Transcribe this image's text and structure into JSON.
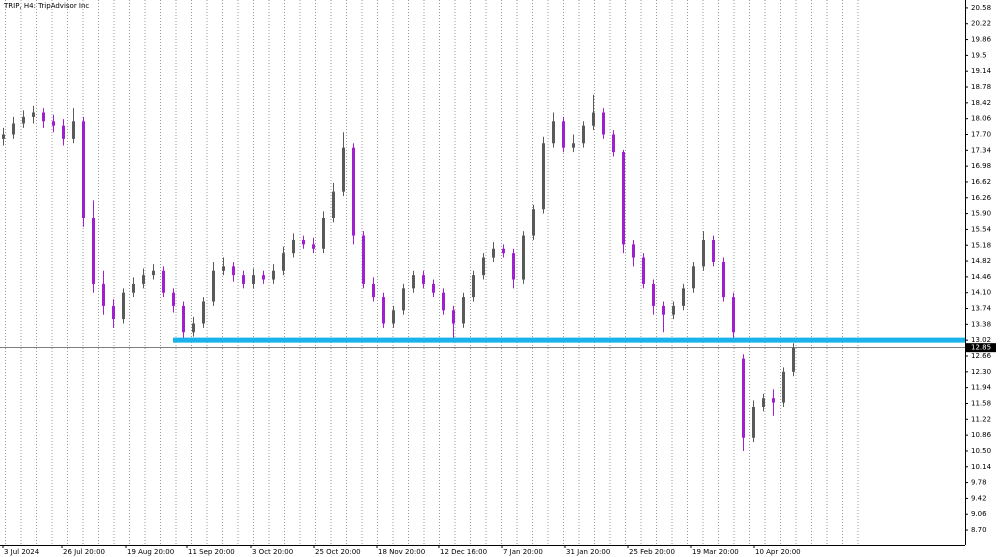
{
  "chart_data": {
    "type": "candlestick",
    "title": "TRIP, H4:  TripAdvisor Inc",
    "up_color": "#5a5a5a",
    "down_color": "#a020d0",
    "open": [
      17.6,
      17.7,
      17.95,
      18.1,
      18.2,
      18.0,
      17.9,
      17.6,
      18.0,
      15.8,
      14.3,
      13.8,
      13.5,
      14.1,
      14.3,
      14.5,
      14.6,
      14.1,
      13.8,
      13.2,
      13.4,
      13.9,
      14.6,
      14.7,
      14.5,
      14.3,
      14.5,
      14.4,
      14.6,
      15.0,
      15.3,
      15.2,
      15.1,
      15.8,
      16.4,
      17.4,
      15.4,
      14.3,
      14.0,
      13.4,
      13.7,
      14.2,
      14.5,
      14.3,
      14.1,
      13.7,
      13.4,
      14.0,
      14.5,
      14.9,
      15.1,
      15.0,
      14.4,
      15.4,
      16.0,
      17.5,
      18.0,
      17.4,
      17.5,
      17.9,
      18.2,
      17.7,
      17.3,
      15.2,
      14.9,
      14.3,
      13.8,
      13.6,
      13.8,
      14.2,
      14.7,
      15.3,
      14.8,
      14.0,
      12.6,
      10.8,
      11.5,
      11.7,
      11.6,
      12.3
    ],
    "high": [
      17.85,
      18.1,
      18.25,
      18.35,
      18.3,
      18.15,
      18.05,
      18.3,
      18.1,
      16.2,
      14.6,
      13.95,
      14.2,
      14.45,
      14.65,
      14.75,
      14.7,
      14.2,
      13.9,
      13.55,
      14.0,
      14.8,
      14.9,
      14.8,
      14.6,
      14.65,
      14.6,
      14.75,
      15.15,
      15.45,
      15.4,
      15.35,
      15.95,
      16.6,
      17.75,
      17.5,
      15.5,
      14.45,
      14.1,
      13.8,
      14.3,
      14.6,
      14.6,
      14.4,
      14.2,
      13.8,
      14.1,
      14.6,
      15.0,
      15.25,
      15.2,
      15.1,
      15.5,
      16.1,
      17.65,
      18.2,
      18.1,
      17.7,
      18.0,
      18.6,
      18.3,
      17.8,
      17.35,
      15.3,
      15.0,
      14.4,
      13.9,
      13.9,
      14.3,
      14.8,
      15.5,
      15.4,
      14.9,
      14.1,
      12.7,
      11.65,
      11.8,
      11.9,
      12.4,
      12.95
    ],
    "low": [
      17.45,
      17.6,
      17.85,
      17.95,
      17.85,
      17.75,
      17.45,
      17.5,
      15.6,
      14.1,
      13.6,
      13.3,
      13.4,
      14.0,
      14.2,
      14.4,
      14.0,
      13.65,
      13.05,
      13.1,
      13.3,
      13.8,
      14.5,
      14.35,
      14.2,
      14.2,
      14.3,
      14.3,
      14.5,
      14.9,
      15.1,
      15.0,
      15.0,
      15.7,
      16.3,
      15.2,
      14.2,
      13.9,
      13.3,
      13.3,
      13.6,
      14.1,
      14.2,
      14.0,
      13.6,
      13.05,
      13.3,
      13.9,
      14.4,
      14.8,
      14.9,
      14.2,
      14.3,
      15.3,
      15.9,
      17.4,
      17.3,
      17.3,
      17.4,
      17.8,
      17.6,
      17.2,
      15.0,
      14.7,
      14.2,
      13.6,
      13.2,
      13.5,
      13.7,
      14.1,
      14.6,
      14.7,
      13.9,
      13.0,
      10.5,
      10.7,
      11.4,
      11.3,
      11.5,
      12.2
    ],
    "close": [
      17.7,
      17.95,
      18.1,
      18.2,
      18.0,
      17.9,
      17.6,
      18.0,
      15.8,
      14.3,
      13.8,
      13.5,
      14.1,
      14.3,
      14.5,
      14.6,
      14.1,
      13.8,
      13.2,
      13.4,
      13.9,
      14.6,
      14.7,
      14.5,
      14.3,
      14.5,
      14.4,
      14.6,
      15.0,
      15.3,
      15.2,
      15.1,
      15.8,
      16.4,
      17.4,
      15.4,
      14.3,
      14.0,
      13.4,
      13.7,
      14.2,
      14.5,
      14.3,
      14.1,
      13.7,
      13.4,
      14.0,
      14.5,
      14.9,
      15.1,
      15.0,
      14.4,
      15.4,
      16.0,
      17.5,
      18.0,
      17.4,
      17.5,
      17.9,
      18.2,
      17.7,
      17.3,
      15.2,
      14.9,
      14.3,
      13.8,
      13.6,
      13.8,
      14.2,
      14.7,
      15.3,
      14.8,
      14.0,
      13.2,
      10.8,
      11.5,
      11.7,
      11.6,
      12.3,
      12.85
    ],
    "xlim": [
      -0.3,
      96.2
    ],
    "xticks": [
      {
        "value": 0,
        "label": "3 Jul 2024"
      },
      {
        "value": 5.9,
        "label": "26 Jul 20:00"
      },
      {
        "value": 12.3,
        "label": "19 Aug 20:00"
      },
      {
        "value": 18.4,
        "label": "11 Sep 20:00"
      },
      {
        "value": 24.8,
        "label": "3 Oct 20:00"
      },
      {
        "value": 31.1,
        "label": "25 Oct 20:00"
      },
      {
        "value": 37.4,
        "label": "18 Nov 20:00"
      },
      {
        "value": 43.6,
        "label": "12 Dec 16:00"
      },
      {
        "value": 49.9,
        "label": "7 Jan 20:00"
      },
      {
        "value": 56.2,
        "label": "31 Jan 20:00"
      },
      {
        "value": 62.5,
        "label": "25 Feb 20:00"
      },
      {
        "value": 68.8,
        "label": "19 Mar 20:00"
      },
      {
        "value": 75.1,
        "label": "10 Apr 20:00"
      }
    ],
    "ylim": [
      8.36,
      20.76
    ],
    "yticks": [
      20.58,
      20.22,
      19.86,
      19.5,
      19.14,
      18.78,
      18.42,
      18.06,
      {
        "value": 17.7,
        "label": "17.70"
      },
      17.34,
      16.98,
      16.62,
      16.26,
      {
        "value": 15.9,
        "label": "15.90"
      },
      15.54,
      15.18,
      14.82,
      14.46,
      {
        "value": 14.1,
        "label": "14.10"
      },
      13.74,
      13.38,
      13.02,
      12.66,
      {
        "value": 12.3,
        "label": "12.30"
      },
      11.94,
      11.58,
      11.22,
      10.86,
      {
        "value": 10.5,
        "label": "10.50"
      },
      10.14,
      9.78,
      9.42,
      9.06,
      {
        "value": 8.7,
        "label": "8.70"
      }
    ],
    "last_price": 12.85,
    "level": {
      "value": 13.02,
      "start": 17,
      "color": "#1ab2ec"
    }
  }
}
